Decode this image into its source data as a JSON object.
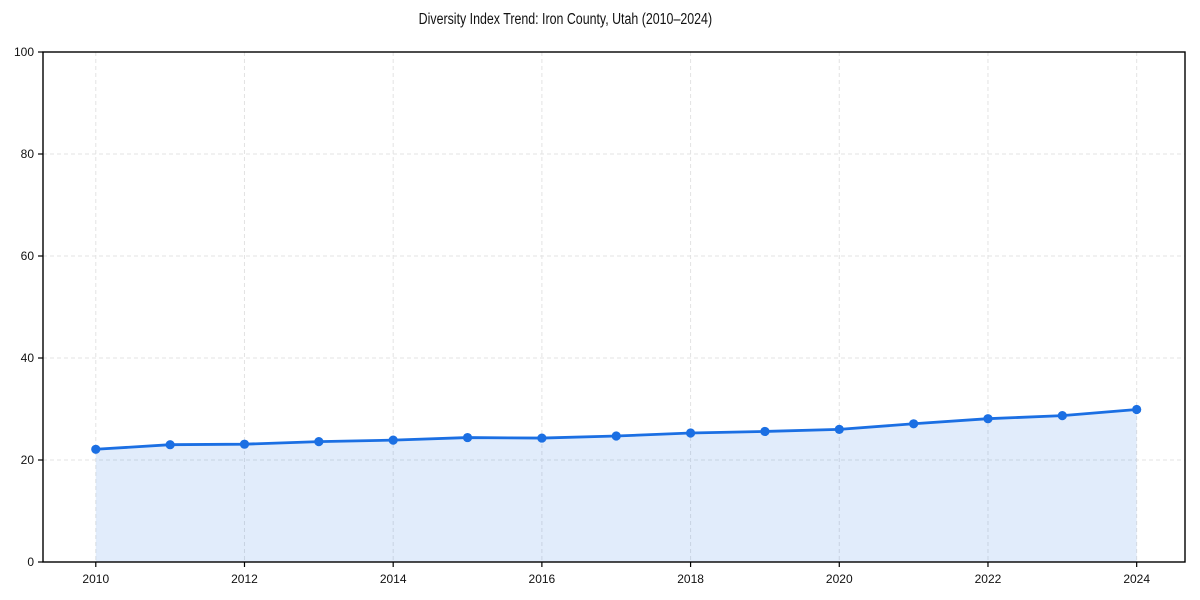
{
  "chart_data": {
    "type": "area",
    "title": "Diversity Index Trend: Iron County, Utah (2010–2024)",
    "series_name": "Diversity Index",
    "x": [
      2010,
      2011,
      2012,
      2013,
      2014,
      2015,
      2016,
      2017,
      2018,
      2019,
      2020,
      2021,
      2022,
      2023,
      2024
    ],
    "values": [
      22.1,
      23.0,
      23.1,
      23.6,
      23.9,
      24.4,
      24.3,
      24.7,
      25.3,
      25.6,
      26.0,
      27.1,
      28.1,
      28.7,
      29.9
    ],
    "xlabel": "",
    "ylabel": "",
    "xlim": [
      2009.29,
      2024.65
    ],
    "ylim": [
      0,
      100
    ],
    "xticks": [
      2010,
      2012,
      2014,
      2016,
      2018,
      2020,
      2022,
      2024
    ],
    "yticks": [
      0,
      20,
      40,
      60,
      80,
      100
    ],
    "grid": true,
    "grid_style": "dashed",
    "legend": "none",
    "marker": "circle",
    "colors": {
      "line": "#1b6fe3",
      "marker": "#1b6fe3",
      "fill": "rgba(27,111,227,0.13)",
      "grid": "#e3e3e3",
      "axis": "#000000",
      "text": "#111111",
      "background": "#ffffff"
    }
  }
}
